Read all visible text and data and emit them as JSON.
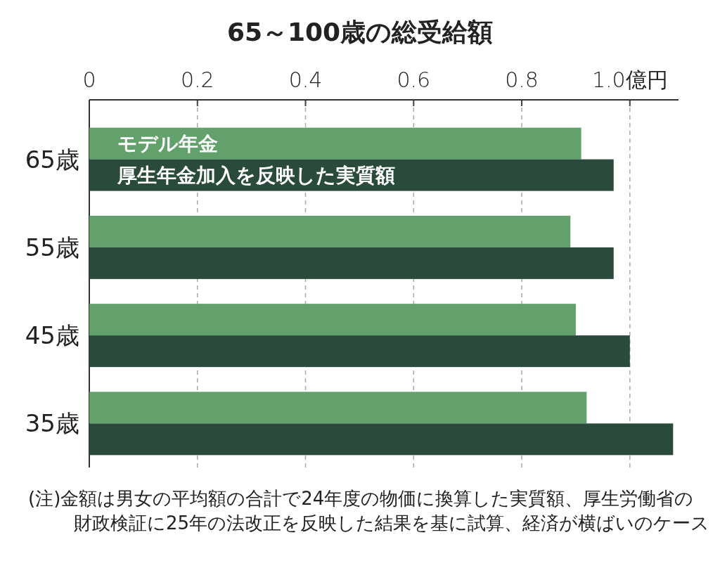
{
  "chart_data": {
    "type": "bar",
    "orientation": "horizontal",
    "title": "65～100歳の総受給額",
    "categories": [
      "65歳",
      "55歳",
      "45歳",
      "35歳"
    ],
    "series": [
      {
        "name": "モデル年金",
        "color": "#62a06c",
        "values": [
          0.91,
          0.89,
          0.9,
          0.92
        ]
      },
      {
        "name": "厚生年金加入を反映した実質額",
        "color": "#2a4a3c",
        "values": [
          0.97,
          0.97,
          1.0,
          1.08
        ]
      }
    ],
    "xlim": [
      0,
      1.09
    ],
    "xticks": [
      0,
      0.2,
      0.4,
      0.6,
      0.8,
      {
        "value": 1.0,
        "label": "1.0億円"
      }
    ],
    "grid": "x",
    "legend": "top left",
    "annotations": [
      "(注)金額は男女の平均額の合計で24年度の物価に換算した実質額、厚生労働省の財政検証に25年の法改正を反映した結果を基に試算、経済が横ばいのケース"
    ]
  }
}
